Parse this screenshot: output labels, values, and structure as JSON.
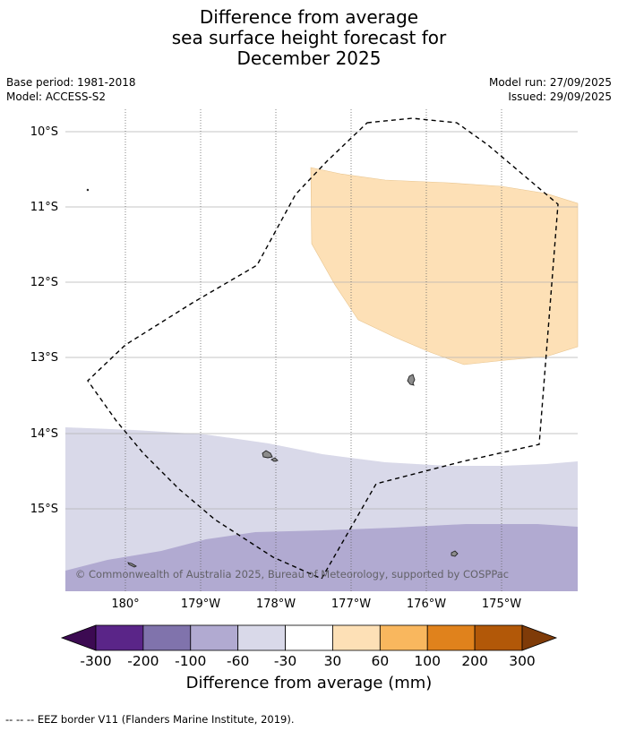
{
  "header": {
    "title_lines": [
      "Difference from average",
      "sea surface height forecast for",
      "December 2025"
    ],
    "base_period": "Base period: 1981-2018",
    "model": "Model: ACCESS-S2",
    "model_run": "Model run: 27/09/2025",
    "issued": "Issued: 29/09/2025"
  },
  "map": {
    "lat_labels": [
      "10°S",
      "11°S",
      "12°S",
      "13°S",
      "14°S",
      "15°S"
    ],
    "lon_labels": [
      "180°",
      "179°W",
      "178°W",
      "177°W",
      "176°W",
      "175°W"
    ],
    "copyright": "© Commonwealth of Australia 2025, Bureau of Meteorology, supported by COSPPac",
    "anomaly_regions": [
      {
        "name": "positive-30-60mm-region",
        "bin": "30 to 60",
        "color": "#fde0b6"
      },
      {
        "name": "negative-60-30mm-region",
        "bin": "-60 to -30",
        "color": "#d9d9e9"
      },
      {
        "name": "negative-100-60mm-region",
        "bin": "-100 to -60",
        "color": "#b1aad1"
      }
    ]
  },
  "colorbar": {
    "ticks": [
      "-300",
      "-200",
      "-100",
      "-60",
      "-30",
      "30",
      "60",
      "100",
      "200",
      "300"
    ],
    "colors": [
      "#5a2588",
      "#8073ac",
      "#b1aad1",
      "#d9d9e9",
      "#ffffff",
      "#fde0b6",
      "#f9b75e",
      "#e0821c",
      "#b25808"
    ],
    "under_color": "#3c0a52",
    "over_color": "#7f3b08",
    "label": "Difference from average (mm)"
  },
  "legend": {
    "eez_note": "--  --  -- EEZ border V11 (Flanders Marine Institute, 2019)."
  }
}
